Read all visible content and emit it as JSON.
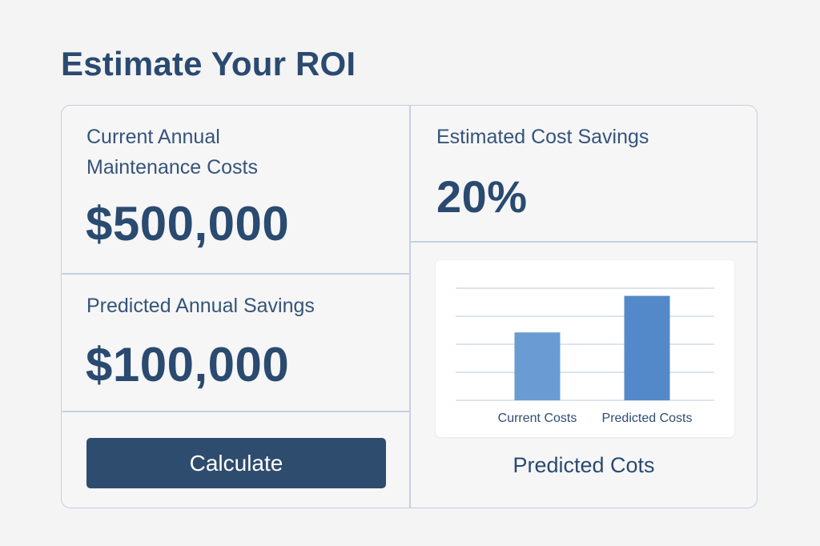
{
  "page": {
    "title": "Estimate Your ROI"
  },
  "inputs": {
    "current_costs": {
      "label_line1": "Current Annual",
      "label_line2": "Maintenance Costs",
      "value": "$500,000"
    },
    "cost_savings": {
      "label": "Estimated Cost Savings",
      "value": "20%"
    },
    "predicted_savings": {
      "label": "Predicted Annual Savings",
      "value": "$100,000"
    }
  },
  "actions": {
    "calculate_label": "Calculate"
  },
  "chart_caption": "Predicted Cots",
  "colors": {
    "title": "#2a4a70",
    "button": "#2e4c6d",
    "border": "#c4d1df",
    "bar_current": "#6a9bd2",
    "bar_predicted": "#5389c8",
    "gridline": "#c7d5e4"
  },
  "chart_data": {
    "type": "bar",
    "categories": [
      "Current Costs",
      "Predicted Costs"
    ],
    "values": [
      65,
      100
    ],
    "ylim": [
      0,
      115
    ],
    "grid": true,
    "y_tick_labels": false,
    "legend": "none"
  }
}
